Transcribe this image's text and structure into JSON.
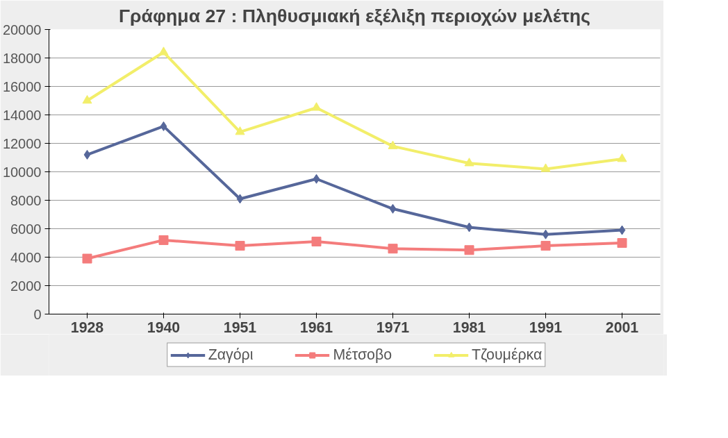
{
  "chart_data": {
    "type": "line",
    "title": "Γράφημα 27 : Πληθυσμιακή εξέλιξη περιοχών μελέτης",
    "categories": [
      "1928",
      "1940",
      "1951",
      "1961",
      "1971",
      "1981",
      "1991",
      "2001"
    ],
    "series": [
      {
        "name": "Ζαγόρι",
        "color": "#56679a",
        "marker": "diamond",
        "values": [
          11200,
          13200,
          8100,
          9500,
          7400,
          6100,
          5600,
          5900
        ]
      },
      {
        "name": "Μέτσοβο",
        "color": "#f47c7c",
        "marker": "square",
        "values": [
          3900,
          5200,
          4800,
          5100,
          4600,
          4500,
          4800,
          5000
        ]
      },
      {
        "name": "Τζουμέρκα",
        "color": "#f2ee6a",
        "marker": "triangle",
        "values": [
          15000,
          18400,
          12800,
          14500,
          11800,
          10600,
          10200,
          10900
        ]
      }
    ],
    "ylim": [
      0,
      20000
    ],
    "yticks": [
      0,
      2000,
      4000,
      6000,
      8000,
      10000,
      12000,
      14000,
      16000,
      18000,
      20000
    ],
    "grid": "y",
    "legend": "bottom",
    "line_style": "solid"
  }
}
